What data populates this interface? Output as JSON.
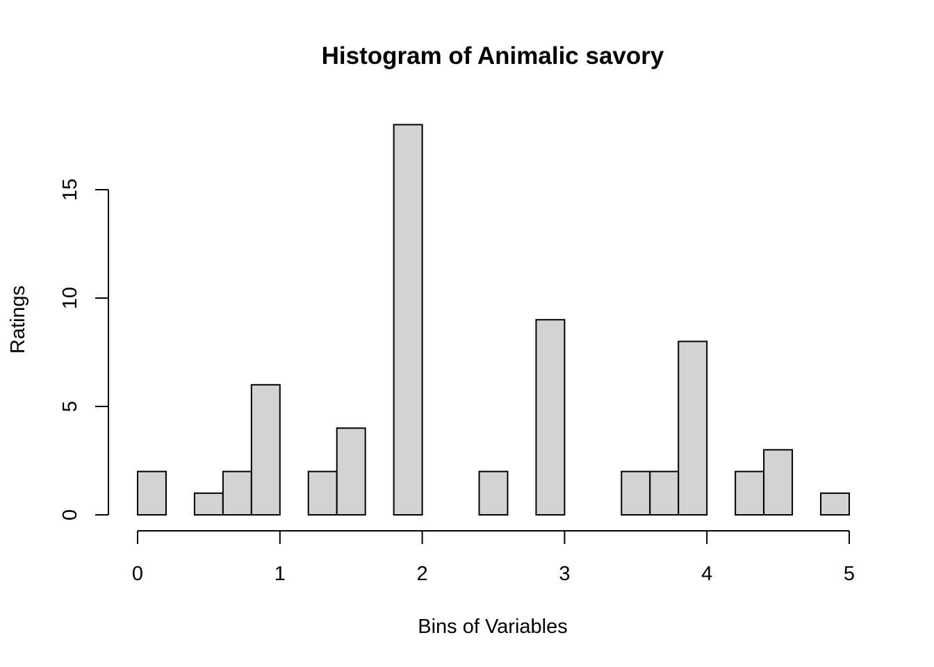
{
  "chart_data": {
    "type": "bar",
    "title": "Histogram of Animalic savory",
    "xlabel": "Bins of Variables",
    "ylabel": "Ratings",
    "bin_edges": [
      0,
      0.2,
      0.4,
      0.6,
      0.8,
      1.0,
      1.2,
      1.4,
      1.6,
      1.8,
      2.0,
      2.2,
      2.4,
      2.6,
      2.8,
      3.0,
      3.2,
      3.4,
      3.6,
      3.8,
      4.0,
      4.2,
      4.4,
      4.6,
      4.8,
      5.0
    ],
    "values": [
      2,
      0,
      1,
      2,
      6,
      0,
      2,
      4,
      0,
      18,
      0,
      0,
      2,
      0,
      9,
      0,
      0,
      2,
      2,
      8,
      0,
      2,
      3,
      0,
      1
    ],
    "xlim": [
      0,
      5
    ],
    "ylim": [
      0,
      18
    ],
    "x_ticks": [
      0,
      1,
      2,
      3,
      4,
      5
    ],
    "y_ticks": [
      0,
      5,
      10,
      15
    ],
    "bar_color": "#d3d3d3",
    "grid": false,
    "legend": "none"
  }
}
